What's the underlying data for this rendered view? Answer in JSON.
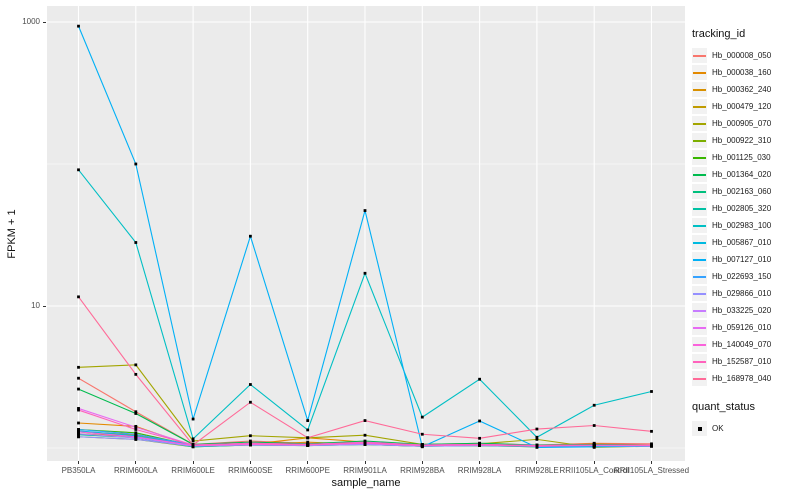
{
  "chart_data": {
    "type": "line",
    "title": "",
    "xlabel": "sample_name",
    "ylabel": "FPKM + 1",
    "y_scale": "log10",
    "y_axis": {
      "tick_labels": [
        "1000",
        "10"
      ],
      "tick_values": [
        1000,
        10
      ],
      "major_gridlines": [
        1000,
        10
      ],
      "minor_gridlines": [
        100,
        1
      ],
      "ylim": [
        0.81,
        1290
      ]
    },
    "grid": "on",
    "legend_position": "right",
    "categories": [
      "PB350LA",
      "RRIM600LA",
      "RRIM600LE",
      "RRIM600SE",
      "RRIM600PE",
      "RRIM901LA",
      "RRIM928BA",
      "RRIM928LA",
      "RRIM928LE",
      "RRII105LA_Control",
      "RRII105LA_Stressed"
    ],
    "series": [
      {
        "name": "Hb_000008_050",
        "color": "#F8766D",
        "values": [
          3.1,
          1.8,
          1.06,
          1.12,
          1.08,
          1.1,
          1.06,
          1.08,
          1.05,
          1.08,
          1.07
        ]
      },
      {
        "name": "Hb_000038_160",
        "color": "#E38900",
        "values": [
          1.5,
          1.42,
          1.03,
          1.06,
          1.18,
          1.1,
          1.05,
          1.06,
          1.04,
          1.07,
          1.05
        ]
      },
      {
        "name": "Hb_000362_240",
        "color": "#D89000",
        "values": [
          1.3,
          1.24,
          1.04,
          1.05,
          1.1,
          1.06,
          1.03,
          1.05,
          1.03,
          1.05,
          1.04
        ]
      },
      {
        "name": "Hb_000479_120",
        "color": "#C09B00",
        "values": [
          1.26,
          1.2,
          1.03,
          1.06,
          1.05,
          1.08,
          1.04,
          1.05,
          1.03,
          1.04,
          1.03
        ]
      },
      {
        "name": "Hb_000905_070",
        "color": "#A3A500",
        "values": [
          3.7,
          3.85,
          1.12,
          1.22,
          1.18,
          1.23,
          1.06,
          1.07,
          1.15,
          1.01,
          1.03
        ]
      },
      {
        "name": "Hb_000922_310",
        "color": "#7CAE00",
        "values": [
          1.2,
          1.15,
          1.02,
          1.05,
          1.04,
          1.06,
          1.03,
          1.04,
          1.02,
          1.03,
          1.03
        ]
      },
      {
        "name": "Hb_001125_030",
        "color": "#39B600",
        "values": [
          1.35,
          1.28,
          1.04,
          1.08,
          1.06,
          1.1,
          1.05,
          1.06,
          1.04,
          1.05,
          1.04
        ]
      },
      {
        "name": "Hb_001364_020",
        "color": "#00BB4E",
        "values": [
          2.6,
          1.75,
          1.06,
          1.1,
          1.07,
          1.12,
          1.06,
          1.08,
          1.05,
          1.06,
          1.05
        ]
      },
      {
        "name": "Hb_002163_060",
        "color": "#00BF7D",
        "values": [
          1.3,
          1.2,
          1.03,
          1.06,
          1.05,
          1.07,
          1.04,
          1.05,
          1.03,
          1.04,
          1.04
        ]
      },
      {
        "name": "Hb_002805_320",
        "color": "#00C1A3",
        "values": [
          1.24,
          1.18,
          1.02,
          1.05,
          1.04,
          1.06,
          1.03,
          1.04,
          1.02,
          1.03,
          1.03
        ]
      },
      {
        "name": "Hb_002983_100",
        "color": "#00BFC4",
        "values": [
          91,
          28,
          1.16,
          2.8,
          1.34,
          17,
          1.65,
          3.05,
          1.19,
          2.0,
          2.5
        ]
      },
      {
        "name": "Hb_005867_010",
        "color": "#00BAE0",
        "values": [
          1.32,
          1.22,
          1.04,
          1.06,
          1.05,
          1.08,
          1.04,
          1.05,
          1.03,
          1.05,
          1.04
        ]
      },
      {
        "name": "Hb_007127_010",
        "color": "#00B0F6",
        "values": [
          935,
          100,
          1.6,
          31,
          1.56,
          47,
          1.02,
          1.55,
          1.01,
          1.02,
          1.03
        ]
      },
      {
        "name": "Hb_022693_150",
        "color": "#35A2FF",
        "values": [
          1.35,
          1.25,
          1.05,
          1.07,
          1.06,
          1.09,
          1.05,
          1.06,
          1.04,
          1.05,
          1.05
        ]
      },
      {
        "name": "Hb_029866_010",
        "color": "#9590FF",
        "values": [
          1.2,
          1.15,
          1.03,
          1.05,
          1.04,
          1.06,
          1.03,
          1.04,
          1.03,
          1.04,
          1.03
        ]
      },
      {
        "name": "Hb_033225_020",
        "color": "#C77CFF",
        "values": [
          1.26,
          1.18,
          1.04,
          1.06,
          1.05,
          1.07,
          1.04,
          1.05,
          1.03,
          1.04,
          1.04
        ]
      },
      {
        "name": "Hb_059126_010",
        "color": "#E76BF3",
        "values": [
          1.9,
          1.4,
          1.05,
          1.08,
          1.06,
          1.1,
          1.05,
          1.06,
          1.04,
          1.05,
          1.05
        ]
      },
      {
        "name": "Hb_140049_070",
        "color": "#FA62DB",
        "values": [
          1.3,
          1.2,
          1.04,
          1.06,
          1.05,
          1.08,
          1.04,
          1.05,
          1.03,
          1.05,
          1.04
        ]
      },
      {
        "name": "Hb_152587_010",
        "color": "#FF62BC",
        "values": [
          1.85,
          1.35,
          1.05,
          1.08,
          1.06,
          1.09,
          1.05,
          1.06,
          1.04,
          1.05,
          1.05
        ]
      },
      {
        "name": "Hb_168978_040",
        "color": "#FF6A98",
        "values": [
          11.6,
          3.3,
          1.05,
          2.1,
          1.18,
          1.56,
          1.25,
          1.17,
          1.36,
          1.44,
          1.31
        ]
      }
    ],
    "point_marker": {
      "shape": "square",
      "color": "#000000"
    },
    "legend": {
      "color_title": "tracking_id",
      "shape_title": "quant_status",
      "shape_items": [
        {
          "label": "OK"
        }
      ]
    }
  },
  "colors": {
    "panel_bg": "#EBEBEB",
    "gridline": "#FFFFFF",
    "axis_text": "#4D4D4D",
    "title_text": "#111111",
    "legend_key_bg": "#F2F2F2"
  }
}
